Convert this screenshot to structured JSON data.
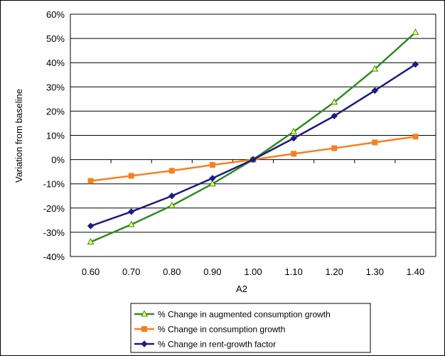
{
  "chart_data": {
    "type": "line",
    "title": "",
    "xlabel": "A2",
    "ylabel": "Variation from baseline",
    "x": [
      "0.60",
      "0.70",
      "0.80",
      "0.90",
      "1.00",
      "1.10",
      "1.20",
      "1.30",
      "1.40"
    ],
    "x_values": [
      0.6,
      0.7,
      0.8,
      0.9,
      1.0,
      1.1,
      1.2,
      1.3,
      1.4
    ],
    "ylim": [
      -40,
      60
    ],
    "y_ticks": [
      "-40%",
      "-30%",
      "-20%",
      "-10%",
      "0%",
      "10%",
      "20%",
      "30%",
      "40%",
      "50%",
      "60%"
    ],
    "y_tick_values": [
      -40,
      -30,
      -20,
      -10,
      0,
      10,
      20,
      30,
      40,
      50,
      60
    ],
    "y_unit": "%",
    "grid": "horizontal",
    "legend_position": "bottom",
    "series": [
      {
        "name": "% Change in augmented consumption growth",
        "color": "#2e8b22",
        "marker": "triangle",
        "values": [
          -34,
          -26.8,
          -19,
          -10,
          0,
          11.5,
          23.7,
          37.4,
          52.5
        ]
      },
      {
        "name": "% Change in consumption growth",
        "color": "#f77f1f",
        "marker": "square",
        "values": [
          -8.8,
          -6.7,
          -4.6,
          -2.2,
          0,
          2.4,
          4.7,
          7.1,
          9.5
        ]
      },
      {
        "name": "% Change in rent-growth factor",
        "color": "#1c1c80",
        "marker": "diamond",
        "values": [
          -27.4,
          -21.5,
          -15,
          -7.7,
          0,
          8.8,
          18,
          28.5,
          39.3
        ]
      }
    ]
  }
}
